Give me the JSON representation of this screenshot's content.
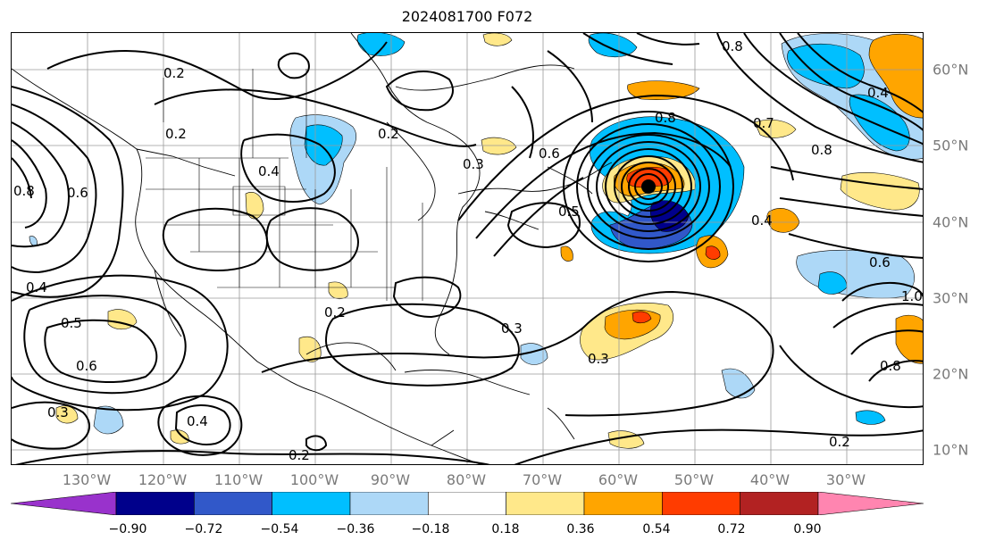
{
  "title": "2024081700 F072",
  "lon_labels": [
    "130°W",
    "120°W",
    "110°W",
    "100°W",
    "90°W",
    "80°W",
    "70°W",
    "60°W",
    "50°W",
    "40°W",
    "30°W"
  ],
  "lat_labels": [
    "60°N",
    "50°N",
    "40°N",
    "30°N",
    "20°N",
    "10°N"
  ],
  "colorbar": {
    "tick_labels": [
      "−0.90",
      "−0.72",
      "−0.54",
      "−0.36",
      "−0.18",
      "0.18",
      "0.36",
      "0.54",
      "0.72",
      "0.90"
    ],
    "colors": [
      "#9932cc",
      "#00008b",
      "#3158c9",
      "#00bfff",
      "#add8f7",
      "#ffffff",
      "#ffe88a",
      "#ffa500",
      "#ff3c00",
      "#b22222",
      "#ff85b0"
    ]
  },
  "contour_labels": [
    {
      "text": "0.2",
      "name": "contour-label-0-2-north"
    },
    {
      "text": "0.2",
      "name": "contour-label-0-2-pacific"
    },
    {
      "text": "0.2",
      "name": "contour-label-0-2-gulf"
    },
    {
      "text": "0.2",
      "name": "contour-label-0-2-south"
    },
    {
      "text": "0.2",
      "name": "contour-label-0-2-atlantic-south"
    },
    {
      "text": "0.2",
      "name": "contour-label-0-2-hudson"
    },
    {
      "text": "0.3",
      "name": "contour-label-0-3-lakes"
    },
    {
      "text": "0.3",
      "name": "contour-label-0-3-atlantic"
    },
    {
      "text": "0.3",
      "name": "contour-label-0-3-atlantic-2"
    },
    {
      "text": "0.3",
      "name": "contour-label-0-3-west"
    },
    {
      "text": "0.4",
      "name": "contour-label-0-4-rockies"
    },
    {
      "text": "0.4",
      "name": "contour-label-0-4-pacific"
    },
    {
      "text": "0.4",
      "name": "contour-label-0-4-hawaii"
    },
    {
      "text": "0.4",
      "name": "contour-label-0-4-newfoundland"
    },
    {
      "text": "0.4",
      "name": "contour-label-0-4-greenland"
    },
    {
      "text": "0.5",
      "name": "contour-label-0-5-pacific"
    },
    {
      "text": "0.5",
      "name": "contour-label-0-5-atlantic"
    },
    {
      "text": "0.6",
      "name": "contour-label-0-6-pacific"
    },
    {
      "text": "0.6",
      "name": "contour-label-0-6-pacific-2"
    },
    {
      "text": "0.6",
      "name": "contour-label-0-6-labrador"
    },
    {
      "text": "0.6",
      "name": "contour-label-0-6-east"
    },
    {
      "text": "0.7",
      "name": "contour-label-0-7-atlantic"
    },
    {
      "text": "0.8",
      "name": "contour-label-0-8-pacific"
    },
    {
      "text": "0.8",
      "name": "contour-label-0-8-labrador"
    },
    {
      "text": "0.8",
      "name": "contour-label-0-8-east"
    },
    {
      "text": "0.8",
      "name": "contour-label-0-8-greenland"
    },
    {
      "text": "0.8",
      "name": "contour-label-0-8-far-east"
    },
    {
      "text": "1.0",
      "name": "contour-label-1-0-east"
    }
  ]
}
